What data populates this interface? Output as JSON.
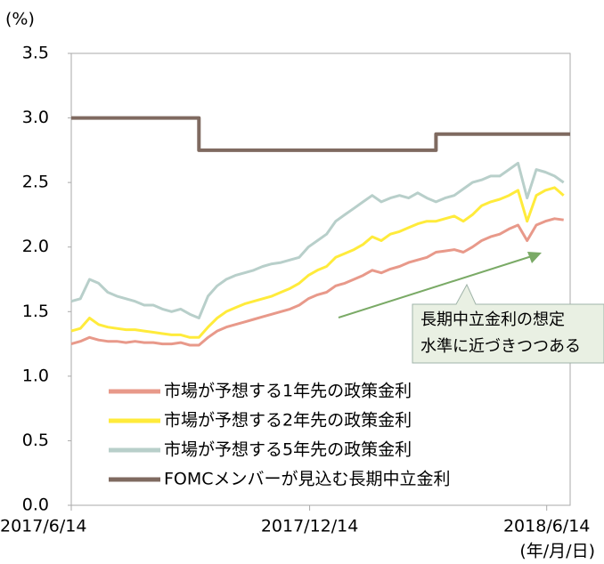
{
  "chart_data": {
    "type": "line",
    "y_unit": "(%)",
    "x_unit": "(年/月/日)",
    "x": [
      "2017-06-14",
      "2017-06-21",
      "2017-06-28",
      "2017-07-05",
      "2017-07-12",
      "2017-07-19",
      "2017-07-26",
      "2017-08-02",
      "2017-08-09",
      "2017-08-16",
      "2017-08-23",
      "2017-08-30",
      "2017-09-06",
      "2017-09-13",
      "2017-09-20",
      "2017-09-27",
      "2017-10-04",
      "2017-10-11",
      "2017-10-18",
      "2017-10-25",
      "2017-11-01",
      "2017-11-08",
      "2017-11-15",
      "2017-11-22",
      "2017-11-29",
      "2017-12-06",
      "2017-12-13",
      "2017-12-20",
      "2017-12-27",
      "2018-01-03",
      "2018-01-10",
      "2018-01-17",
      "2018-01-24",
      "2018-01-31",
      "2018-02-07",
      "2018-02-14",
      "2018-02-21",
      "2018-02-28",
      "2018-03-07",
      "2018-03-14",
      "2018-03-21",
      "2018-03-28",
      "2018-04-04",
      "2018-04-11",
      "2018-04-18",
      "2018-04-25",
      "2018-05-02",
      "2018-05-09",
      "2018-05-16",
      "2018-05-23",
      "2018-05-30",
      "2018-06-06",
      "2018-06-13",
      "2018-06-20",
      "2018-06-27"
    ],
    "series": [
      {
        "name": "市場が予想する1年先の政策金利",
        "color": "#e8998a",
        "values": [
          1.25,
          1.27,
          1.3,
          1.28,
          1.27,
          1.27,
          1.26,
          1.27,
          1.26,
          1.26,
          1.25,
          1.25,
          1.26,
          1.24,
          1.24,
          1.3,
          1.35,
          1.38,
          1.4,
          1.42,
          1.44,
          1.46,
          1.48,
          1.5,
          1.52,
          1.55,
          1.6,
          1.63,
          1.65,
          1.7,
          1.72,
          1.75,
          1.78,
          1.82,
          1.8,
          1.83,
          1.85,
          1.88,
          1.9,
          1.92,
          1.96,
          1.97,
          1.98,
          1.96,
          2.0,
          2.05,
          2.08,
          2.1,
          2.14,
          2.17,
          2.05,
          2.17,
          2.2,
          2.22,
          2.21
        ]
      },
      {
        "name": "市場が予想する2年先の政策金利",
        "color": "#ffeb3b",
        "values": [
          1.35,
          1.37,
          1.45,
          1.4,
          1.38,
          1.37,
          1.36,
          1.36,
          1.35,
          1.34,
          1.33,
          1.32,
          1.32,
          1.3,
          1.3,
          1.38,
          1.45,
          1.5,
          1.53,
          1.56,
          1.58,
          1.6,
          1.62,
          1.65,
          1.68,
          1.72,
          1.78,
          1.82,
          1.85,
          1.92,
          1.95,
          1.98,
          2.02,
          2.08,
          2.05,
          2.1,
          2.12,
          2.15,
          2.18,
          2.2,
          2.2,
          2.22,
          2.24,
          2.2,
          2.25,
          2.32,
          2.35,
          2.37,
          2.4,
          2.44,
          2.2,
          2.4,
          2.44,
          2.46,
          2.4
        ]
      },
      {
        "name": "市場が予想する5年先の政策金利",
        "color": "#b8cfca",
        "values": [
          1.58,
          1.6,
          1.75,
          1.72,
          1.65,
          1.62,
          1.6,
          1.58,
          1.55,
          1.55,
          1.52,
          1.5,
          1.52,
          1.48,
          1.45,
          1.62,
          1.7,
          1.75,
          1.78,
          1.8,
          1.82,
          1.85,
          1.87,
          1.88,
          1.9,
          1.92,
          2.0,
          2.05,
          2.1,
          2.2,
          2.25,
          2.3,
          2.35,
          2.4,
          2.35,
          2.38,
          2.4,
          2.38,
          2.42,
          2.38,
          2.35,
          2.38,
          2.4,
          2.45,
          2.5,
          2.52,
          2.55,
          2.55,
          2.6,
          2.65,
          2.38,
          2.6,
          2.58,
          2.55,
          2.5
        ]
      },
      {
        "name": "FOMCメンバーが見込む長期中立金利",
        "color": "#7f6a60",
        "x": [
          "2017-06-14",
          "2017-09-20",
          "2017-09-20",
          "2018-03-21",
          "2018-03-21",
          "2018-07-02"
        ],
        "values": [
          3.0,
          3.0,
          2.75,
          2.75,
          2.875,
          2.875
        ]
      }
    ],
    "xlim": [
      "2017-06-14",
      "2018-07-02"
    ],
    "xticks": [
      {
        "value": "2017-06-14",
        "label": "2017/6/14"
      },
      {
        "value": "2017-12-14",
        "label": "2017/12/14"
      },
      {
        "value": "2018-06-14",
        "label": "2018/6/14"
      }
    ],
    "ylim": [
      0,
      3.5
    ],
    "yticks": [
      {
        "value": 0,
        "label": "0.0"
      },
      {
        "value": 0.5,
        "label": "0.5"
      },
      {
        "value": 1,
        "label": "1.0"
      },
      {
        "value": 1.5,
        "label": "1.5"
      },
      {
        "value": 2,
        "label": "2.0"
      },
      {
        "value": 2.5,
        "label": "2.5"
      },
      {
        "value": 3,
        "label": "3.0"
      },
      {
        "value": 3.5,
        "label": "3.5"
      }
    ],
    "annotation": [
      "長期中立金利の想定",
      "水準に近づきつつある"
    ],
    "legend": "lower-left"
  }
}
